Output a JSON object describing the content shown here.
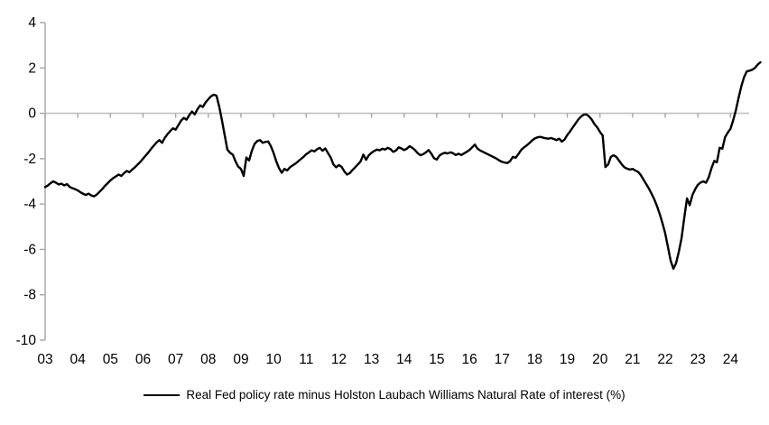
{
  "legend": {
    "label": "Real Fed policy rate minus Holston Laubach Williams Natural Rate of interest (%)"
  },
  "chart_data": {
    "type": "line",
    "title": "",
    "xlabel": "",
    "ylabel": "",
    "ylim": [
      -10,
      4
    ],
    "y_ticks": [
      "4",
      "2",
      "0",
      "-2",
      "-4",
      "-6",
      "-8",
      "-10"
    ],
    "y_tick_values": [
      4,
      2,
      0,
      -2,
      -4,
      -6,
      -8,
      -10
    ],
    "x_tick_labels": [
      "03",
      "04",
      "05",
      "06",
      "07",
      "08",
      "09",
      "10",
      "11",
      "12",
      "13",
      "14",
      "15",
      "16",
      "17",
      "18",
      "19",
      "20",
      "21",
      "22",
      "23",
      "24"
    ],
    "grid": "zero-line-only",
    "legend_position": "bottom-center",
    "line_color": "#000000",
    "axis_color": "#a6a6a6",
    "zero_line_color": "#c0c0c0",
    "series": [
      {
        "name": "Real Fed policy rate minus Holston Laubach Williams Natural Rate of interest (%)",
        "x_start_year": 2003,
        "x_step": "monthly",
        "values": [
          -3.25,
          -3.18,
          -3.08,
          -3.0,
          -3.06,
          -3.14,
          -3.1,
          -3.18,
          -3.12,
          -3.24,
          -3.3,
          -3.34,
          -3.4,
          -3.48,
          -3.55,
          -3.6,
          -3.54,
          -3.62,
          -3.66,
          -3.58,
          -3.46,
          -3.34,
          -3.2,
          -3.08,
          -2.96,
          -2.86,
          -2.78,
          -2.7,
          -2.76,
          -2.64,
          -2.54,
          -2.6,
          -2.48,
          -2.38,
          -2.26,
          -2.14,
          -2.0,
          -1.86,
          -1.72,
          -1.56,
          -1.42,
          -1.28,
          -1.18,
          -1.3,
          -1.08,
          -0.92,
          -0.78,
          -0.66,
          -0.72,
          -0.52,
          -0.32,
          -0.2,
          -0.28,
          -0.08,
          0.08,
          -0.05,
          0.18,
          0.35,
          0.28,
          0.48,
          0.62,
          0.75,
          0.82,
          0.78,
          0.3,
          -0.3,
          -0.95,
          -1.6,
          -1.74,
          -1.82,
          -2.12,
          -2.35,
          -2.45,
          -2.76,
          -1.95,
          -2.08,
          -1.65,
          -1.35,
          -1.22,
          -1.18,
          -1.3,
          -1.26,
          -1.24,
          -1.45,
          -1.75,
          -2.12,
          -2.42,
          -2.62,
          -2.45,
          -2.52,
          -2.38,
          -2.3,
          -2.22,
          -2.12,
          -2.02,
          -1.92,
          -1.8,
          -1.72,
          -1.63,
          -1.68,
          -1.58,
          -1.52,
          -1.65,
          -1.55,
          -1.75,
          -1.95,
          -2.25,
          -2.38,
          -2.28,
          -2.36,
          -2.56,
          -2.7,
          -2.64,
          -2.5,
          -2.38,
          -2.25,
          -2.12,
          -1.82,
          -2.05,
          -1.85,
          -1.74,
          -1.66,
          -1.6,
          -1.63,
          -1.56,
          -1.6,
          -1.52,
          -1.58,
          -1.7,
          -1.64,
          -1.5,
          -1.55,
          -1.62,
          -1.56,
          -1.45,
          -1.52,
          -1.62,
          -1.76,
          -1.85,
          -1.8,
          -1.72,
          -1.62,
          -1.78,
          -1.98,
          -2.04,
          -1.86,
          -1.78,
          -1.74,
          -1.77,
          -1.72,
          -1.76,
          -1.84,
          -1.78,
          -1.84,
          -1.77,
          -1.7,
          -1.62,
          -1.5,
          -1.38,
          -1.56,
          -1.64,
          -1.7,
          -1.76,
          -1.82,
          -1.88,
          -1.94,
          -2.0,
          -2.08,
          -2.14,
          -2.17,
          -2.19,
          -2.1,
          -1.92,
          -1.96,
          -1.8,
          -1.62,
          -1.51,
          -1.42,
          -1.32,
          -1.2,
          -1.11,
          -1.06,
          -1.04,
          -1.07,
          -1.1,
          -1.12,
          -1.09,
          -1.13,
          -1.18,
          -1.12,
          -1.25,
          -1.15,
          -0.95,
          -0.8,
          -0.62,
          -0.45,
          -0.28,
          -0.15,
          -0.06,
          -0.05,
          -0.14,
          -0.28,
          -0.48,
          -0.62,
          -0.82,
          -0.98,
          -2.37,
          -2.26,
          -1.92,
          -1.85,
          -1.92,
          -2.08,
          -2.25,
          -2.38,
          -2.44,
          -2.48,
          -2.45,
          -2.52,
          -2.58,
          -2.72,
          -2.92,
          -3.12,
          -3.32,
          -3.55,
          -3.8,
          -4.1,
          -4.45,
          -4.85,
          -5.3,
          -5.9,
          -6.5,
          -6.85,
          -6.6,
          -6.1,
          -5.5,
          -4.6,
          -3.75,
          -4.05,
          -3.6,
          -3.35,
          -3.15,
          -3.05,
          -3.0,
          -3.06,
          -2.82,
          -2.42,
          -2.1,
          -2.16,
          -1.52,
          -1.56,
          -1.05,
          -0.85,
          -0.68,
          -0.3,
          0.15,
          0.7,
          1.2,
          1.6,
          1.85,
          1.88,
          1.92,
          2.0,
          2.15,
          2.25
        ]
      }
    ]
  }
}
